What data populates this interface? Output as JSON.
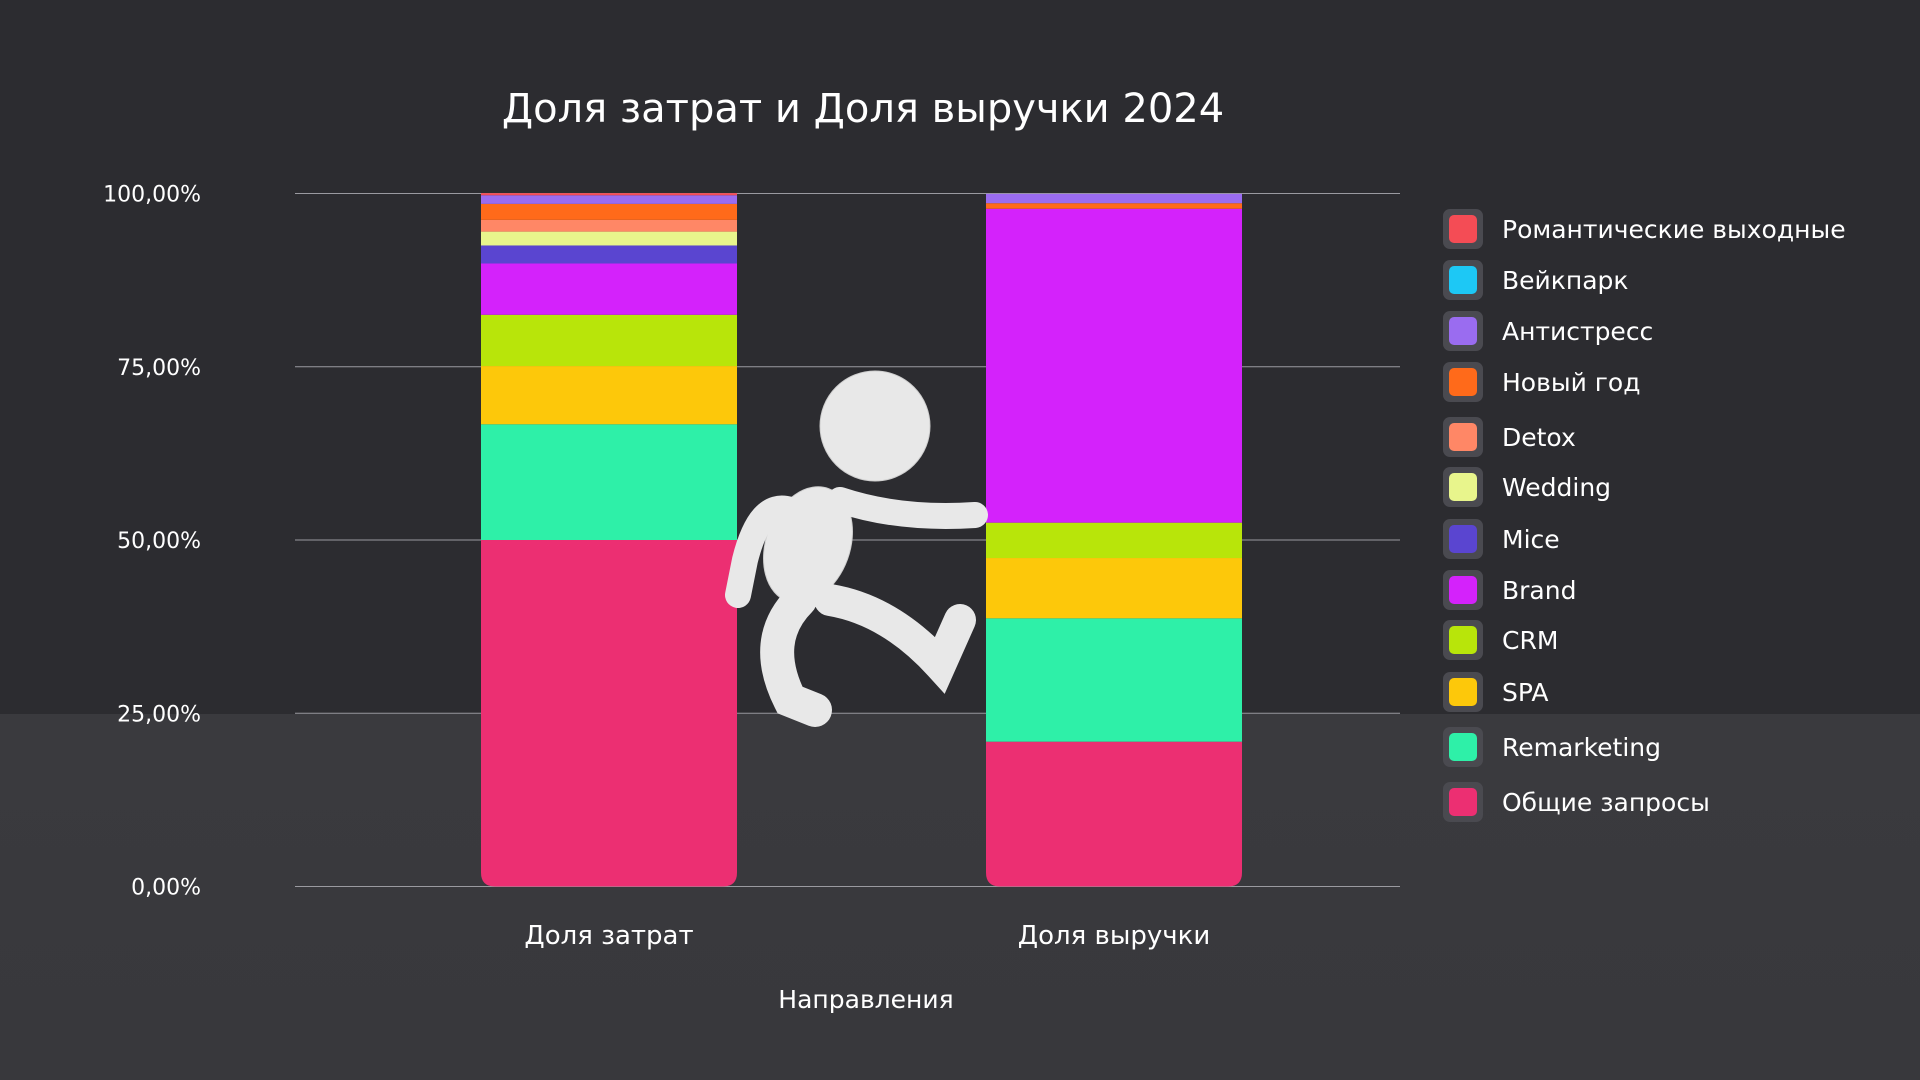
{
  "chart_data": {
    "type": "bar",
    "stacked": true,
    "title": "Доля затрат и Доля выручки 2024",
    "xlabel": "Направления",
    "ylabel": "",
    "ylim": [
      0,
      100
    ],
    "yticks": [
      "0,00%",
      "25,00%",
      "50,00%",
      "75,00%",
      "100,00%"
    ],
    "ytick_values": [
      0,
      25,
      50,
      75,
      100
    ],
    "grid": true,
    "legend_position": "right",
    "categories": [
      "Доля затрат",
      "Доля выручки"
    ],
    "series": [
      {
        "name": "Общие запросы",
        "color": "#ec2f72",
        "values": [
          50.0,
          20.9
        ]
      },
      {
        "name": "Remarketing",
        "color": "#2ef0a8",
        "values": [
          16.7,
          17.8
        ]
      },
      {
        "name": "SPA",
        "color": "#fdc80a",
        "values": [
          8.4,
          8.7
        ]
      },
      {
        "name": "CRM",
        "color": "#b8e50a",
        "values": [
          7.4,
          5.1
        ]
      },
      {
        "name": "Brand",
        "color": "#d422fb",
        "values": [
          7.4,
          45.3
        ]
      },
      {
        "name": "Mice",
        "color": "#5a45d0",
        "values": [
          2.6,
          0
        ]
      },
      {
        "name": "Wedding",
        "color": "#e8f58c",
        "values": [
          2.0,
          0
        ]
      },
      {
        "name": "Detox",
        "color": "#ff8766",
        "values": [
          1.7,
          0
        ]
      },
      {
        "name": "Новый год",
        "color": "#ff6a1a",
        "values": [
          2.3,
          0.8
        ]
      },
      {
        "name": "Антистресс",
        "color": "#9a6cf0",
        "values": [
          1.25,
          1.35
        ]
      },
      {
        "name": "Вейкпарк",
        "color": "#1dc8f5",
        "values": [
          0,
          0
        ]
      },
      {
        "name": "Романтические выходные",
        "color": "#f44c55",
        "values": [
          0.3,
          0
        ]
      }
    ]
  }
}
